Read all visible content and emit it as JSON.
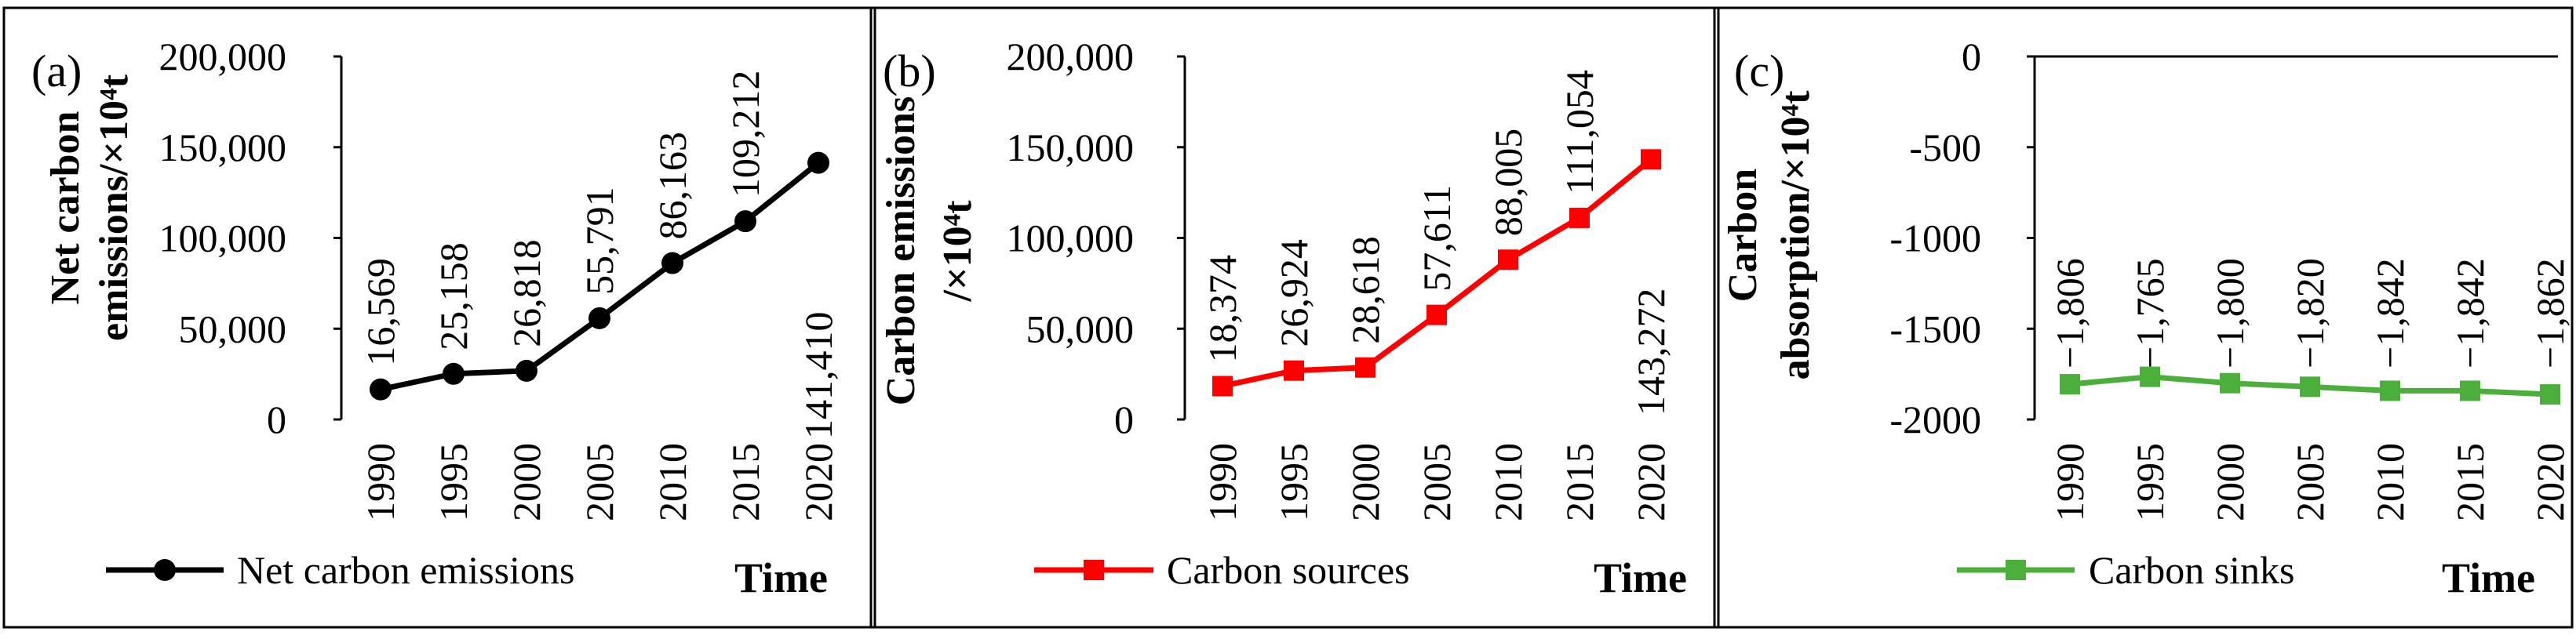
{
  "chart_data": [
    {
      "type": "line",
      "panel_label": "(a)",
      "ylabel_lines": [
        "Net carbon",
        "emissions/×10⁴t"
      ],
      "xlabel": "Time",
      "x": [
        "1990",
        "1995",
        "2000",
        "2005",
        "2010",
        "2015",
        "2020"
      ],
      "series": [
        {
          "name": "Net carbon emissions",
          "values": [
            16569,
            25158,
            26818,
            55791,
            86163,
            109212,
            141410
          ]
        }
      ],
      "data_labels": [
        "16,569",
        "25,158",
        "26,818",
        "55,791",
        "86,163",
        "109,212",
        "141,410"
      ],
      "yticks": [
        "0",
        "50,000",
        "100,000",
        "150,000",
        "200,000"
      ],
      "ylim": [
        0,
        200000
      ],
      "color": "#000000",
      "marker": "circle",
      "legend": "bottom-left"
    },
    {
      "type": "line",
      "panel_label": "(b)",
      "ylabel_lines": [
        "Carbon emissions",
        "/×10⁴t"
      ],
      "xlabel": "Time",
      "x": [
        "1990",
        "1995",
        "2000",
        "2005",
        "2010",
        "2015",
        "2020"
      ],
      "series": [
        {
          "name": "Carbon sources",
          "values": [
            18374,
            26924,
            28618,
            57611,
            88005,
            111054,
            143272
          ]
        }
      ],
      "data_labels": [
        "18,374",
        "26,924",
        "28,618",
        "57,611",
        "88,005",
        "111,054",
        "143,272"
      ],
      "yticks": [
        "0",
        "50,000",
        "100,000",
        "150,000",
        "200,000"
      ],
      "ylim": [
        0,
        200000
      ],
      "color": "#ff0000",
      "marker": "square",
      "legend": "bottom-left"
    },
    {
      "type": "line",
      "panel_label": "(c)",
      "ylabel_lines": [
        "Carbon",
        "absorption/×10⁴t"
      ],
      "xlabel": "Time",
      "x": [
        "1990",
        "1995",
        "2000",
        "2005",
        "2010",
        "2015",
        "2020"
      ],
      "series": [
        {
          "name": "Carbon sinks",
          "values": [
            -1806,
            -1765,
            -1800,
            -1820,
            -1842,
            -1842,
            -1862
          ]
        }
      ],
      "data_labels": [
        "−1,806",
        "−1,765",
        "−1,800",
        "−1,820",
        "−1,842",
        "−1,842",
        "−1,862"
      ],
      "yticks": [
        "0",
        "-500",
        "-1000",
        "-1500",
        "-2000"
      ],
      "ylim": [
        -2000,
        0
      ],
      "color": "#4caf3c",
      "marker": "square",
      "legend": "bottom-left"
    }
  ]
}
